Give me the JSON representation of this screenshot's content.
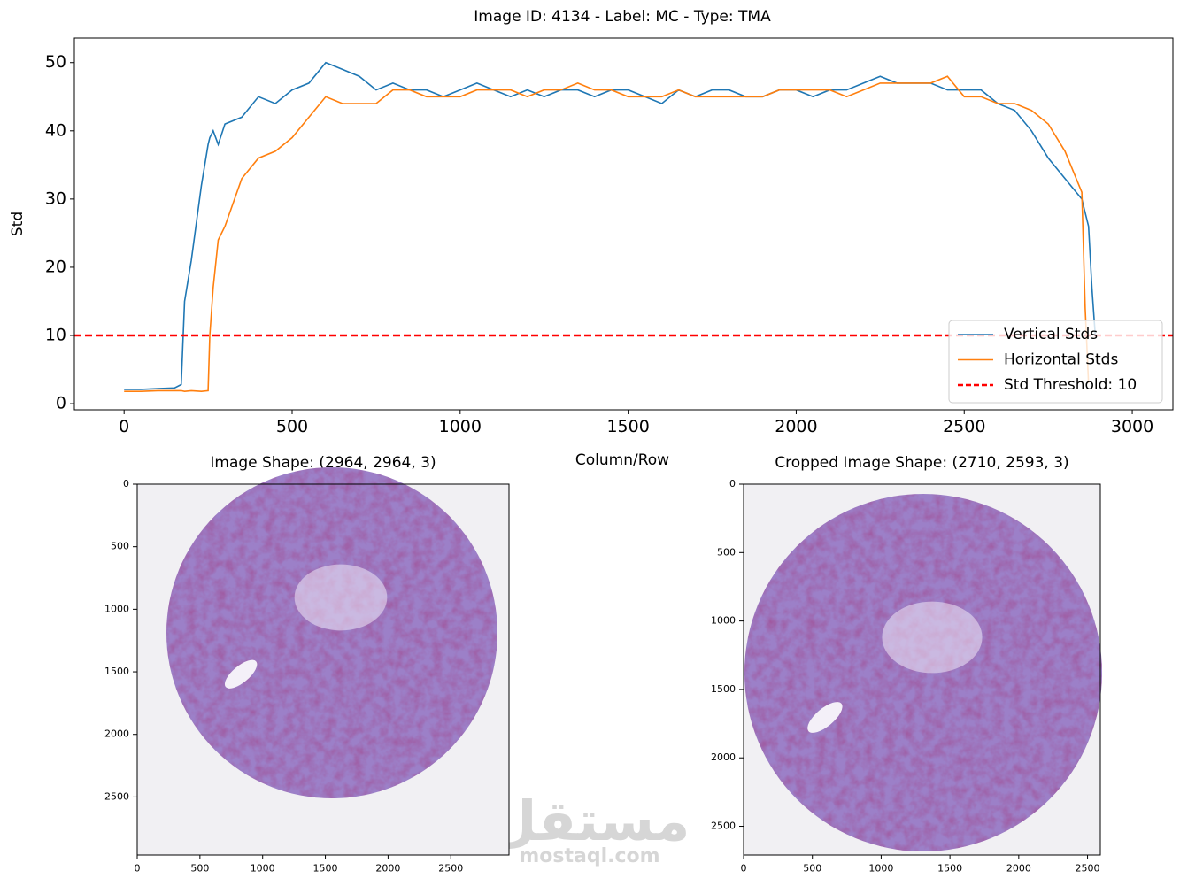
{
  "chart_data": [
    {
      "type": "line",
      "title": "Image ID: 4134 - Label: MC - Type: TMA",
      "x_label": "Column/Row",
      "y_label": "Std",
      "x": [
        0,
        50,
        100,
        150,
        170,
        180,
        200,
        230,
        250,
        255,
        265,
        280,
        300,
        350,
        400,
        450,
        500,
        550,
        600,
        650,
        700,
        750,
        800,
        850,
        900,
        950,
        1000,
        1050,
        1100,
        1150,
        1200,
        1250,
        1300,
        1350,
        1400,
        1450,
        1500,
        1550,
        1600,
        1650,
        1700,
        1750,
        1800,
        1850,
        1900,
        1950,
        2000,
        2050,
        2100,
        2150,
        2200,
        2250,
        2300,
        2350,
        2400,
        2450,
        2500,
        2550,
        2600,
        2650,
        2700,
        2750,
        2800,
        2850,
        2860,
        2870,
        2880,
        2890
      ],
      "series": [
        {
          "name": "Vertical Stds",
          "color": "#1f77b4",
          "values": [
            2.1,
            2.1,
            2.2,
            2.3,
            2.8,
            15,
            21,
            32,
            38,
            39,
            40,
            38,
            41,
            42,
            45,
            44,
            46,
            47,
            50,
            49,
            48,
            46,
            47,
            46,
            46,
            45,
            46,
            47,
            46,
            45,
            46,
            45,
            46,
            46,
            45,
            46,
            46,
            45,
            44,
            46,
            45,
            46,
            46,
            45,
            45,
            46,
            46,
            45,
            46,
            46,
            47,
            48,
            47,
            47,
            47,
            46,
            46,
            46,
            44,
            43,
            40,
            36,
            33,
            30,
            28,
            26,
            17,
            10
          ]
        },
        {
          "name": "Horizontal Stds",
          "color": "#ff7f0e",
          "values": [
            1.8,
            1.8,
            1.9,
            1.9,
            1.9,
            1.8,
            1.9,
            1.8,
            1.9,
            10,
            17,
            24,
            26,
            33,
            36,
            37,
            39,
            42,
            45,
            44,
            44,
            44,
            46,
            46,
            45,
            45,
            45,
            46,
            46,
            46,
            45,
            46,
            46,
            47,
            46,
            46,
            45,
            45,
            45,
            46,
            45,
            45,
            45,
            45,
            45,
            46,
            46,
            46,
            46,
            45,
            46,
            47,
            47,
            47,
            47,
            48,
            45,
            45,
            44,
            44,
            43,
            41,
            37,
            31,
            14,
            3,
            null,
            null
          ]
        }
      ],
      "threshold": {
        "value": 10,
        "label": "Std Threshold: 10",
        "color": "#ff0000"
      },
      "xlim": [
        -148,
        3121
      ],
      "ylim": [
        -0.9,
        53.6
      ],
      "xticks": [
        0,
        500,
        1000,
        1500,
        2000,
        2500,
        3000
      ],
      "yticks": [
        0,
        10,
        20,
        30,
        40,
        50
      ],
      "legend": "lower right"
    },
    {
      "type": "image",
      "title": "Image Shape: (2964, 2964, 3)",
      "xlim": [
        0,
        2964
      ],
      "ylim": [
        2964,
        0
      ],
      "xticks": [
        0,
        500,
        1000,
        1500,
        2000,
        2500
      ],
      "yticks": [
        0,
        500,
        1000,
        1500,
        2000,
        2500
      ]
    },
    {
      "type": "image",
      "title": "Cropped Image Shape: (2710, 2593, 3)",
      "xlim": [
        0,
        2593
      ],
      "ylim": [
        2710,
        0
      ],
      "xticks": [
        0,
        500,
        1000,
        1500,
        2000,
        2500
      ],
      "yticks": [
        0,
        500,
        1000,
        1500,
        2000,
        2500
      ]
    }
  ],
  "watermark": {
    "arabic": "مستقل",
    "latin": "mostaql.com"
  }
}
